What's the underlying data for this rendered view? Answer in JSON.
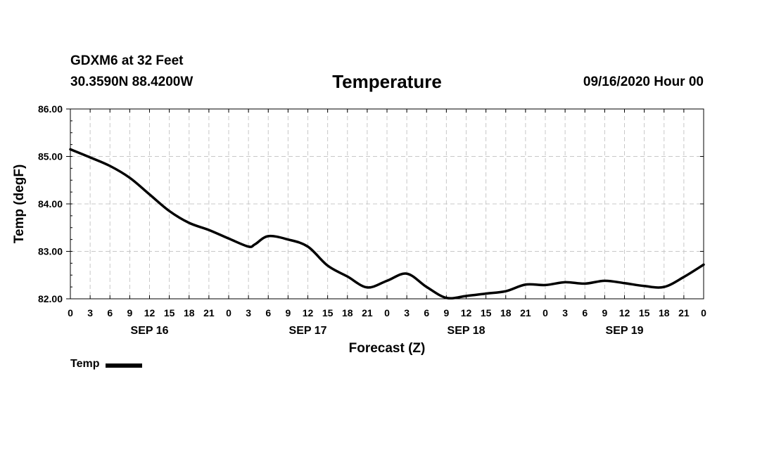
{
  "header": {
    "station": "GDXM6 at 32 Feet",
    "coords": "30.3590N 88.4200W",
    "title": "Temperature",
    "datetime": "09/16/2020 Hour 00"
  },
  "legend": {
    "label": "Temp"
  },
  "colors": {
    "line": "#000000",
    "grid": "#c8c8c8",
    "frame": "#000000"
  },
  "chart_data": {
    "type": "line",
    "title": "Temperature",
    "xlabel": "Forecast (Z)",
    "ylabel": "Temp (degF)",
    "ylim": [
      82,
      86
    ],
    "xlim": [
      0,
      96
    ],
    "grid": true,
    "x_tick_labels": [
      "0",
      "3",
      "6",
      "9",
      "12",
      "15",
      "18",
      "21",
      "0",
      "3",
      "6",
      "9",
      "12",
      "15",
      "18",
      "21",
      "0",
      "3",
      "6",
      "9",
      "12",
      "15",
      "18",
      "21",
      "0",
      "3",
      "6",
      "9",
      "12",
      "15",
      "18",
      "21",
      "0"
    ],
    "y_tick_labels": [
      "82.00",
      "83.00",
      "84.00",
      "85.00",
      "86.00"
    ],
    "day_labels": [
      {
        "label": "SEP 16",
        "hour": 12
      },
      {
        "label": "SEP 17",
        "hour": 36
      },
      {
        "label": "SEP 18",
        "hour": 60
      },
      {
        "label": "SEP 19",
        "hour": 84
      }
    ],
    "legend": "bottom-left",
    "series": [
      {
        "name": "Temp",
        "x": [
          0,
          3,
          6,
          9,
          12,
          15,
          18,
          21,
          24,
          27,
          28,
          30,
          33,
          36,
          39,
          42,
          45,
          48,
          51,
          54,
          57,
          60,
          63,
          66,
          69,
          72,
          75,
          78,
          81,
          84,
          87,
          90,
          93,
          96
        ],
        "values": [
          85.15,
          84.98,
          84.8,
          84.55,
          84.2,
          83.85,
          83.6,
          83.45,
          83.27,
          83.1,
          83.15,
          83.32,
          83.25,
          83.1,
          82.7,
          82.47,
          82.24,
          82.38,
          82.53,
          82.25,
          82.02,
          82.06,
          82.11,
          82.16,
          82.3,
          82.29,
          82.35,
          82.32,
          82.38,
          82.33,
          82.27,
          82.25,
          82.46,
          82.72
        ]
      }
    ]
  }
}
